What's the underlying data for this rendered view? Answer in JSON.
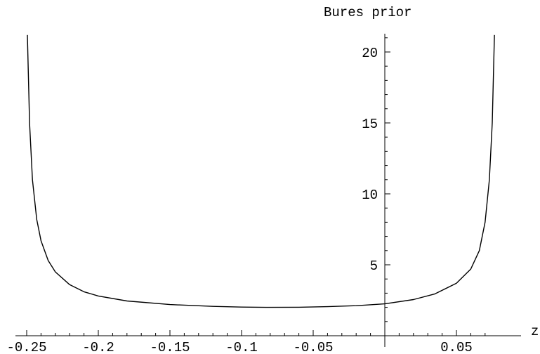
{
  "chart_data": {
    "type": "line",
    "title": "",
    "xlabel": "z",
    "ylabel": "Bures prior",
    "xlim": [
      -0.253,
      0.08
    ],
    "ylim": [
      0,
      21
    ],
    "x_ticks": [
      {
        "value": -0.25,
        "label": "-0.25"
      },
      {
        "value": -0.2,
        "label": "-0.2"
      },
      {
        "value": -0.15,
        "label": "-0.15"
      },
      {
        "value": -0.1,
        "label": "-0.1"
      },
      {
        "value": -0.05,
        "label": "-0.05"
      },
      {
        "value": 0.05,
        "label": "0.05"
      }
    ],
    "y_ticks": [
      {
        "value": 5,
        "label": "5"
      },
      {
        "value": 10,
        "label": "10"
      },
      {
        "value": 15,
        "label": "15"
      },
      {
        "value": 20,
        "label": "20"
      }
    ],
    "grid": false,
    "series": [
      {
        "x": [
          -0.2495,
          -0.248,
          -0.246,
          -0.243,
          -0.24,
          -0.235,
          -0.23,
          -0.22,
          -0.21,
          -0.2,
          -0.18,
          -0.15,
          -0.12,
          -0.1,
          -0.083,
          -0.06,
          -0.04,
          -0.02,
          0.0,
          0.02,
          0.035,
          0.05,
          0.06,
          0.066,
          0.07,
          0.073,
          0.075,
          0.0765
        ],
        "y": [
          21.2,
          15.0,
          11.0,
          8.2,
          6.7,
          5.3,
          4.5,
          3.6,
          3.1,
          2.8,
          2.45,
          2.2,
          2.07,
          2.02,
          2.0,
          2.01,
          2.05,
          2.12,
          2.25,
          2.55,
          2.95,
          3.7,
          4.7,
          6.0,
          8.0,
          11.0,
          15.0,
          21.2
        ]
      }
    ]
  }
}
